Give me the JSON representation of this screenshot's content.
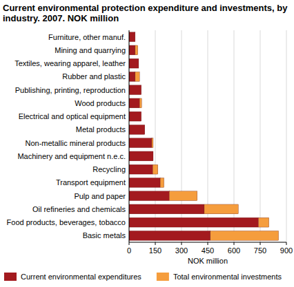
{
  "chart_data": {
    "type": "bar",
    "orientation": "horizontal",
    "stacked": true,
    "grid": true,
    "legend": "bottom",
    "title": "Current environmental protection expenditure and investments, by industry. 2007. NOK million",
    "x_label": "NOK million",
    "categories": [
      "Furniture, other manuf.",
      "Mining and quarrying",
      "Textiles, wearing apparel, leather",
      "Rubber and plastic",
      "Publishing, printing, reproduction",
      "Wood products",
      "Electrical and optical equipment",
      "Metal products",
      "Non-metallic mineral products",
      "Machinery and equipment n.e.c.",
      "Recycling",
      "Transport equipment",
      "Pulp and paper",
      "Oil refineries and chemicals",
      "Food products, beverages, tobacco",
      "Basic metals"
    ],
    "series": [
      {
        "name": "Current environmental expenditures",
        "color": "#a31a1f",
        "values": [
          35,
          35,
          55,
          35,
          70,
          60,
          70,
          90,
          130,
          138,
          135,
          178,
          230,
          430,
          740,
          465
        ]
      },
      {
        "name": "Total environmental investments",
        "color": "#f59d3d",
        "values": [
          0,
          15,
          0,
          25,
          0,
          12,
          0,
          0,
          8,
          0,
          30,
          22,
          160,
          195,
          60,
          390
        ]
      }
    ],
    "xlim": [
      0,
      900
    ],
    "xticks": [
      0,
      150,
      300,
      450,
      600,
      750,
      900
    ]
  }
}
